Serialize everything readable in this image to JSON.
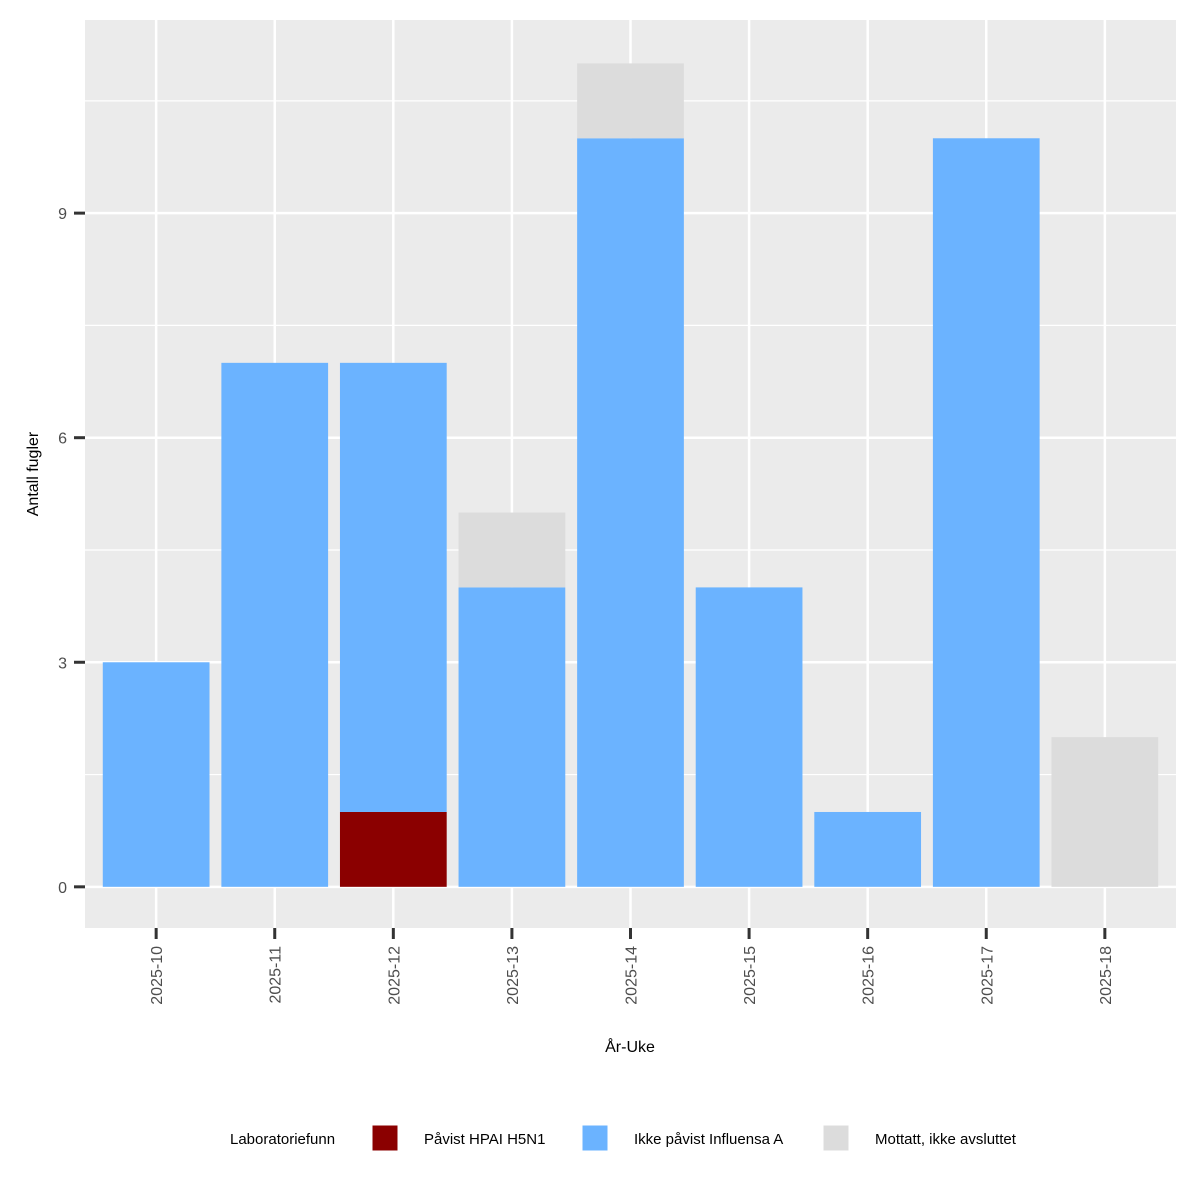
{
  "chart_data": {
    "type": "stacked-bar",
    "x_label": "År-Uke",
    "y_label": "Antall fugler",
    "legend_title": "Laboratoriefunn",
    "categories": [
      "2025-10",
      "2025-11",
      "2025-12",
      "2025-13",
      "2025-14",
      "2025-15",
      "2025-16",
      "2025-17",
      "2025-18"
    ],
    "series": [
      {
        "name": "Påvist HPAI H5N1",
        "color": "#8b0000",
        "values": [
          0,
          0,
          1,
          0,
          0,
          0,
          0,
          0,
          0
        ]
      },
      {
        "name": "Ikke påvist Influensa A",
        "color": "#6bb3ff",
        "values": [
          3,
          7,
          6,
          4,
          10,
          4,
          1,
          10,
          0
        ]
      },
      {
        "name": "Mottatt, ikke avsluttet",
        "color": "#dcdcdc",
        "values": [
          0,
          0,
          0,
          1,
          1,
          0,
          0,
          0,
          2
        ]
      }
    ],
    "ylim": [
      -0.55,
      11.58
    ],
    "yticks": [
      0,
      3,
      6,
      9
    ],
    "grid": true,
    "legend": "bottom"
  }
}
